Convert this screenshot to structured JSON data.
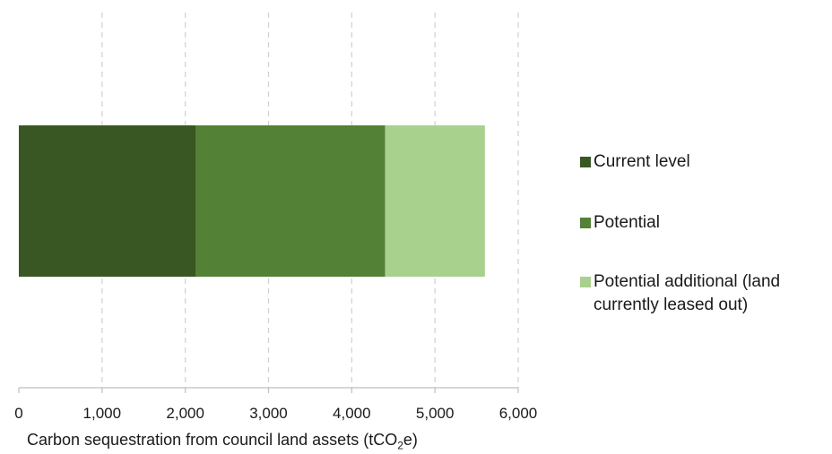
{
  "chart_data": {
    "type": "bar",
    "orientation": "horizontal",
    "stacked": true,
    "categories": [
      ""
    ],
    "series": [
      {
        "name": "Current level",
        "values": [
          2130
        ],
        "color": "#385723"
      },
      {
        "name": "Potential",
        "values": [
          2270
        ],
        "color": "#538135"
      },
      {
        "name": "Potential additional (land currently leased out)",
        "values": [
          1200
        ],
        "color": "#a9d18e"
      }
    ],
    "xlim": [
      0,
      6000
    ],
    "xticks": [
      0,
      1000,
      2000,
      3000,
      4000,
      5000,
      6000
    ],
    "xtick_labels": [
      "0",
      "1,000",
      "2,000",
      "3,000",
      "4,000",
      "5,000",
      "6,000"
    ],
    "xlabel_main": "Carbon sequestration from council land assets (tCO",
    "xlabel_sub": "2",
    "xlabel_end": "e)",
    "grid": "vertical dashed",
    "legend_position": "right"
  }
}
